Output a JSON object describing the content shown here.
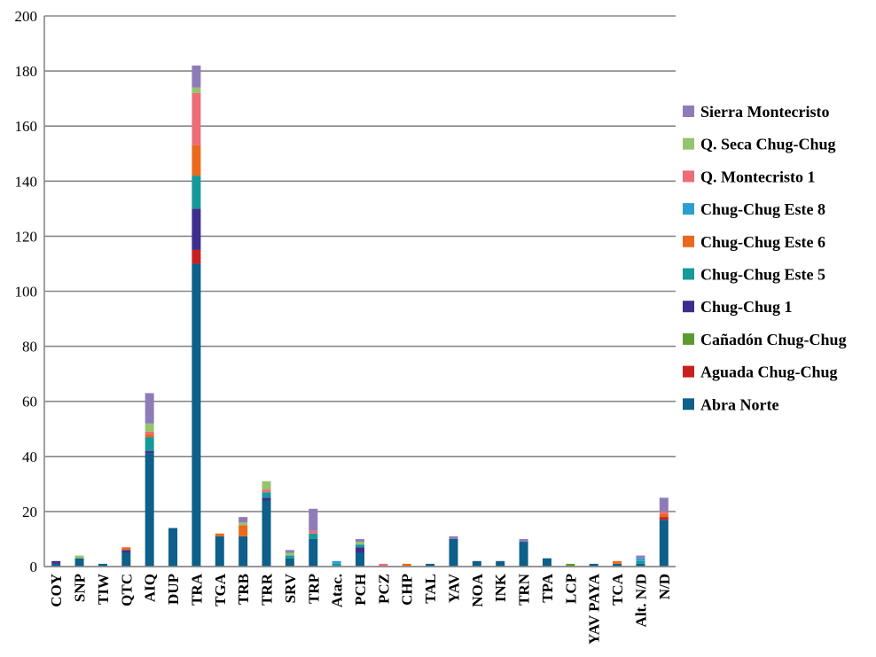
{
  "chart_data": {
    "type": "bar",
    "stacked": true,
    "title": "",
    "xlabel": "",
    "ylabel": "",
    "ylim": [
      0,
      200
    ],
    "yticks": [
      0,
      20,
      40,
      60,
      80,
      100,
      120,
      140,
      160,
      180,
      200
    ],
    "grid": "horizontal",
    "legend_position": "right",
    "categories": [
      "COY",
      "SNP",
      "TIW",
      "QTC",
      "AIQ",
      "DUP",
      "TRA",
      "TGA",
      "TRB",
      "TRR",
      "SRV",
      "TRP",
      "Atac.",
      "PCH",
      "PCZ",
      "CHP",
      "TAL",
      "YAV",
      "NOA",
      "INK",
      "TRN",
      "TPA",
      "LCP",
      "YAV PAYA",
      "TCA",
      "Alt. N/D",
      "N/D"
    ],
    "series": [
      {
        "name": "Abra Norte",
        "color": "#0e5f8a",
        "values": [
          1,
          3,
          1,
          5,
          41,
          14,
          110,
          11,
          11,
          24,
          3,
          10,
          0,
          5,
          0,
          0,
          1,
          10,
          2,
          2,
          9,
          3,
          0,
          1,
          1,
          1,
          17
        ]
      },
      {
        "name": "Aguada Chug-Chug",
        "color": "#c8201f",
        "values": [
          0,
          0,
          0,
          0,
          0,
          0,
          5,
          0,
          0,
          0,
          0,
          0,
          0,
          0,
          0,
          0,
          0,
          0,
          0,
          0,
          0,
          0,
          0,
          0,
          0,
          0,
          1
        ]
      },
      {
        "name": "Cañadón Chug-Chug",
        "color": "#5c9a31",
        "values": [
          0,
          0,
          0,
          0,
          0,
          0,
          0,
          0,
          0,
          0,
          0,
          0,
          0,
          0,
          0,
          0,
          0,
          0,
          0,
          0,
          0,
          0,
          1,
          0,
          0,
          0,
          0
        ]
      },
      {
        "name": "Chug-Chug 1",
        "color": "#3d2d8c",
        "values": [
          1,
          0,
          0,
          1,
          1,
          0,
          15,
          0,
          0,
          1,
          0,
          0,
          0,
          2,
          0,
          0,
          0,
          0,
          0,
          0,
          0,
          0,
          0,
          0,
          0,
          0,
          0
        ]
      },
      {
        "name": "Chug-Chug Este 5",
        "color": "#16999a",
        "values": [
          0,
          0,
          0,
          0,
          5,
          0,
          12,
          0,
          0,
          2,
          1,
          2,
          1,
          1,
          0,
          0,
          0,
          0,
          0,
          0,
          0,
          0,
          0,
          0,
          0,
          1,
          0
        ]
      },
      {
        "name": "Chug-Chug Este 6",
        "color": "#ea6a1d",
        "values": [
          0,
          0,
          0,
          1,
          1,
          0,
          11,
          1,
          4,
          0,
          0,
          0,
          0,
          0,
          0,
          1,
          0,
          0,
          0,
          0,
          0,
          0,
          0,
          0,
          1,
          0,
          1
        ]
      },
      {
        "name": "Chug-Chug Este 8",
        "color": "#2b9fd1",
        "values": [
          0,
          0,
          0,
          0,
          0,
          0,
          0,
          0,
          0,
          0,
          0,
          0,
          1,
          0,
          0,
          0,
          0,
          0,
          0,
          0,
          0,
          0,
          0,
          0,
          0,
          1,
          0
        ]
      },
      {
        "name": "Q. Montecristo 1",
        "color": "#ec6d77",
        "values": [
          0,
          0,
          0,
          0,
          1,
          0,
          19,
          0,
          0,
          1,
          0,
          1,
          0,
          0,
          1,
          0,
          0,
          0,
          0,
          0,
          0,
          0,
          0,
          0,
          0,
          0,
          1
        ]
      },
      {
        "name": "Q. Seca Chug-Chug",
        "color": "#95c46e",
        "values": [
          0,
          1,
          0,
          0,
          3,
          0,
          2,
          0,
          1,
          3,
          1,
          0,
          0,
          1,
          0,
          0,
          0,
          0,
          0,
          0,
          0,
          0,
          0,
          0,
          0,
          0,
          0
        ]
      },
      {
        "name": "Sierra Montecristo",
        "color": "#8e7cb9",
        "values": [
          0,
          0,
          0,
          0,
          11,
          0,
          8,
          0,
          2,
          0,
          1,
          8,
          0,
          1,
          0,
          0,
          0,
          1,
          0,
          0,
          1,
          0,
          0,
          0,
          0,
          1,
          5
        ]
      }
    ]
  }
}
